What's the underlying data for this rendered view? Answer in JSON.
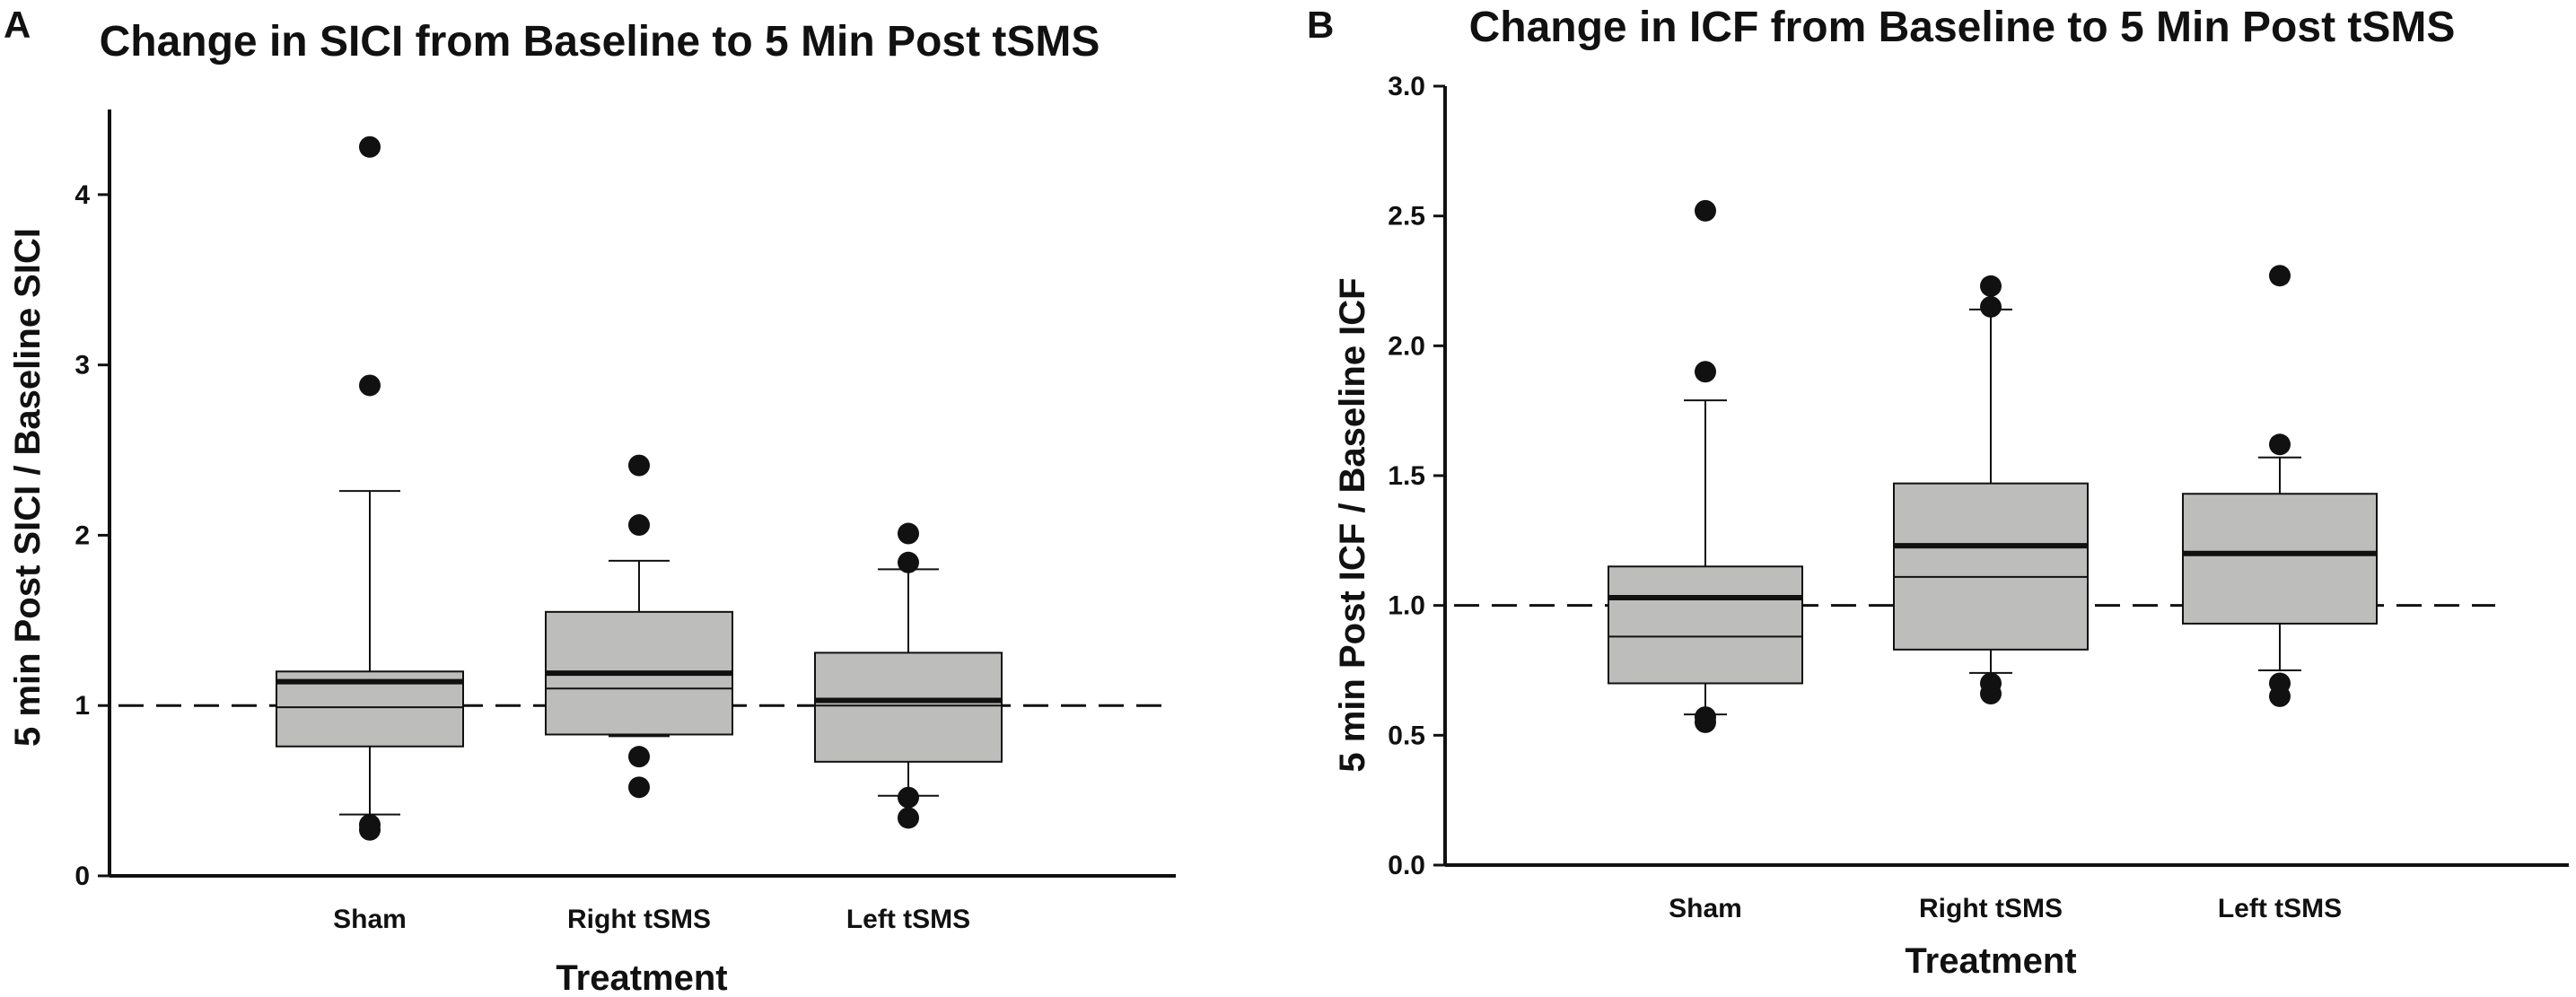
{
  "panels": [
    {
      "letter": "A",
      "chart_data": {
        "type": "box",
        "title": "Change in SICI from Baseline to 5 Min Post tSMS",
        "xlabel": "Treatment",
        "ylabel": "5 min Post SICI / Baseline SICI",
        "ylim": [
          0,
          4.5
        ],
        "yticks": [
          0,
          1,
          2,
          3,
          4
        ],
        "ytick_labels": [
          "0",
          "1",
          "2",
          "3",
          "4"
        ],
        "reference_line": 1.0,
        "categories": [
          "Sham",
          "Right tSMS",
          "Left tSMS"
        ],
        "boxes": [
          {
            "category": "Sham",
            "whisker_low": 0.36,
            "q1": 0.76,
            "median": 0.99,
            "mean": 1.14,
            "q3": 1.2,
            "whisker_high": 2.26,
            "outliers": [
              0.3,
              0.27,
              2.88,
              4.28
            ]
          },
          {
            "category": "Right tSMS",
            "whisker_low": 0.82,
            "q1": 0.83,
            "median": 1.1,
            "mean": 1.19,
            "q3": 1.55,
            "whisker_high": 1.85,
            "outliers": [
              0.52,
              0.7,
              2.06,
              2.41
            ]
          },
          {
            "category": "Left tSMS",
            "whisker_low": 0.47,
            "q1": 0.67,
            "median": 1.0,
            "mean": 1.03,
            "q3": 1.31,
            "whisker_high": 1.8,
            "outliers": [
              0.34,
              0.46,
              1.84,
              2.01
            ]
          }
        ]
      }
    },
    {
      "letter": "B",
      "chart_data": {
        "type": "box",
        "title": "Change in ICF from Baseline to 5 Min Post tSMS",
        "xlabel": "Treatment",
        "ylabel": "5 min Post ICF / Baseline ICF",
        "ylim": [
          0,
          3.0
        ],
        "yticks": [
          0,
          0.5,
          1.0,
          1.5,
          2.0,
          2.5,
          3.0
        ],
        "ytick_labels": [
          "0.0",
          "0.5",
          "1.0",
          "1.5",
          "2.0",
          "2.5",
          "3.0"
        ],
        "reference_line": 1.0,
        "categories": [
          "Sham",
          "Right tSMS",
          "Left tSMS"
        ],
        "boxes": [
          {
            "category": "Sham",
            "whisker_low": 0.58,
            "q1": 0.7,
            "median": 0.88,
            "mean": 1.03,
            "q3": 1.15,
            "whisker_high": 1.79,
            "outliers": [
              0.55,
              0.57,
              1.9,
              2.52
            ]
          },
          {
            "category": "Right tSMS",
            "whisker_low": 0.74,
            "q1": 0.83,
            "median": 1.11,
            "mean": 1.23,
            "q3": 1.47,
            "whisker_high": 2.14,
            "outliers": [
              0.66,
              0.7,
              2.15,
              2.23
            ]
          },
          {
            "category": "Left tSMS",
            "whisker_low": 0.75,
            "q1": 0.93,
            "median": 1.2,
            "mean": 1.2,
            "q3": 1.43,
            "whisker_high": 1.57,
            "outliers": [
              0.65,
              0.7,
              1.62,
              2.27
            ]
          }
        ]
      }
    }
  ],
  "colors": {
    "box_fill": "#bdbdbb",
    "stroke": "#111111",
    "outlier": "#111111"
  }
}
